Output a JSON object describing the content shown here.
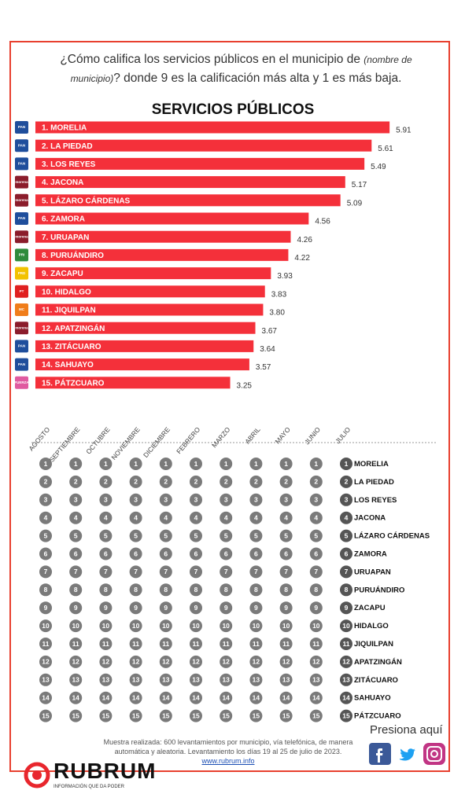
{
  "question": {
    "start": "¿Cómo califica los servicios públicos en el municipio de",
    "italic": "(nombre de municipio)",
    "end": "? donde 9 es la calificación más alta y 1 es más baja."
  },
  "chart_data": [
    {
      "type": "bar",
      "title": "SERVICIOS PÚBLICOS",
      "categories": [
        "1. MORELIA",
        "2. LA PIEDAD",
        "3. LOS REYES",
        "4. JACONA",
        "5. LÁZARO CÁRDENAS",
        "6. ZAMORA",
        "7. URUAPAN",
        "8. PURUÁNDIRO",
        "9. ZACAPU",
        "10. HIDALGO",
        "11. JIQUILPAN",
        "12. APATZINGÁN",
        "13. ZITÁCUARO",
        "14. SAHUAYO",
        "15. PÁTZCUARO"
      ],
      "values": [
        5.91,
        5.61,
        5.49,
        5.17,
        5.09,
        4.56,
        4.26,
        4.22,
        3.93,
        3.83,
        3.8,
        3.67,
        3.64,
        3.57,
        3.25
      ],
      "value_labels": [
        "5.91",
        "5.61",
        "5.49",
        "5.17",
        "5.09",
        "4.56",
        "4.26",
        "4.22",
        "3.93",
        "3.83",
        "3.80",
        "3.67",
        "3.64",
        "3.57",
        "3.25"
      ],
      "logos": [
        "PAN",
        "PAN",
        "PAN",
        "morena",
        "morena",
        "PAN",
        "morena",
        "PRI",
        "PRD",
        "PT",
        "MC",
        "morena",
        "PAN",
        "PAN",
        "FUERZA"
      ],
      "logo_colors": [
        "#1f4e9c",
        "#1f4e9c",
        "#1f4e9c",
        "#8b1c2b",
        "#8b1c2b",
        "#1f4e9c",
        "#8b1c2b",
        "#2e8b3c",
        "#f2c200",
        "#e02020",
        "#f07d1a",
        "#8b1c2b",
        "#1f4e9c",
        "#1f4e9c",
        "#e05aa0"
      ],
      "color": "#f4303a",
      "xlim": [
        0,
        6
      ]
    },
    {
      "type": "bump",
      "categories": [
        "AGOSTO",
        "SEPTIEMBRE",
        "OCTUBRE",
        "NOVIEMBRE",
        "DICIEMBRE",
        "FEBRERO",
        "MARZO",
        "ABRIL",
        "MAYO",
        "JUNIO",
        "JULIO"
      ],
      "ranks": [
        1,
        2,
        3,
        4,
        5,
        6,
        7,
        8,
        9,
        10,
        11,
        12,
        13,
        14,
        15
      ],
      "final_names": [
        "MORELIA",
        "LA PIEDAD",
        "LOS REYES",
        "JACONA",
        "LÁZARO CÁRDENAS",
        "ZAMORA",
        "URUAPAN",
        "PURUÁNDIRO",
        "ZACAPU",
        "HIDALGO",
        "JIQUILPAN",
        "APATZINGÁN",
        "ZITÁCUARO",
        "SAHUAYO",
        "PÁTZCUARO"
      ],
      "color": "#7a7a7a",
      "final_color": "#555555"
    }
  ],
  "footer": {
    "note": "Muestra realizada: 600 levantamientos por municipio, vía telefónica, de manera automática y aleatoria. Levantamiento los días 19 al 25 de julio de 2023.",
    "link": "www.rubrum.info",
    "cta": "Presiona aquí",
    "brand": "RUBRUM",
    "tagline": "INFORMACIÓN QUE DA PODER"
  }
}
